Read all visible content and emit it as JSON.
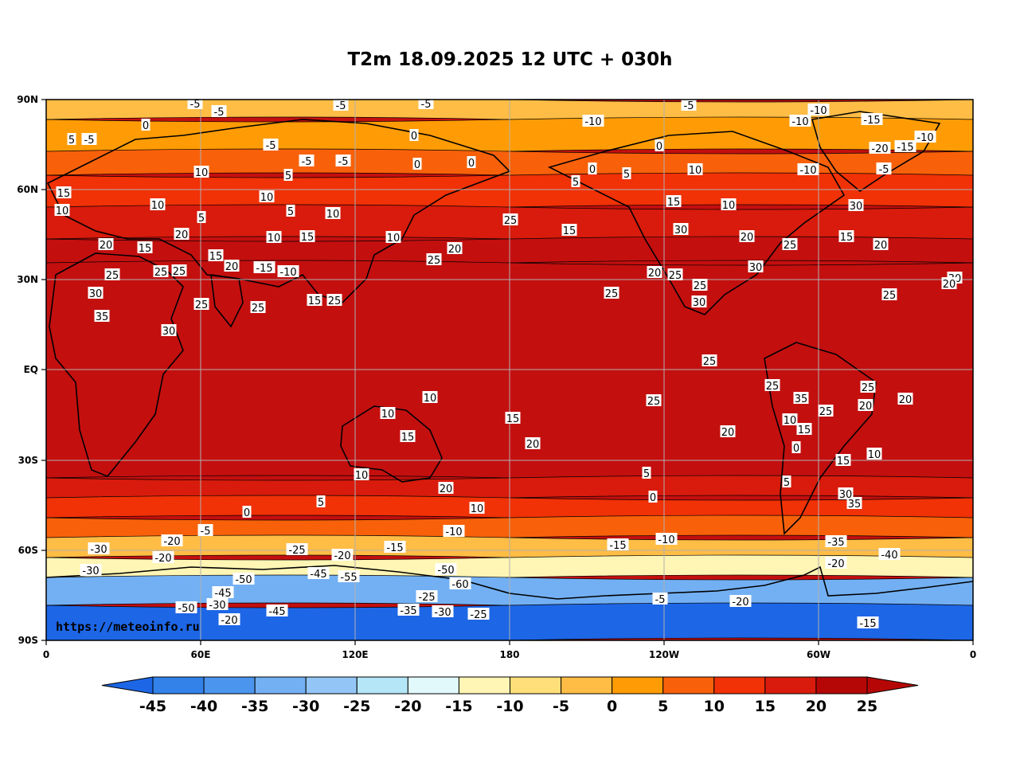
{
  "title": "T2m 18.09.2025 12 UTC + 030h",
  "watermark": "https://meteoinfo.ru",
  "lat_ticks": [
    "90N",
    "60N",
    "30N",
    "EQ",
    "30S",
    "60S",
    "90S"
  ],
  "lon_ticks": [
    "0",
    "60E",
    "120E",
    "180",
    "120W",
    "60W",
    "0"
  ],
  "colorbar": {
    "ticks": [
      "-45",
      "-40",
      "-35",
      "-30",
      "-25",
      "-20",
      "-15",
      "-10",
      "-5",
      "0",
      "5",
      "10",
      "15",
      "20",
      "25"
    ],
    "colors": [
      "#1d66e6",
      "#3282ea",
      "#4b95ee",
      "#73b0f3",
      "#93c6f6",
      "#b4e6f8",
      "#e1f9fb",
      "#fff5b4",
      "#ffdf7a",
      "#ffbd45",
      "#ff9c05",
      "#f8610a",
      "#f13106",
      "#d81b0c",
      "#b60707"
    ],
    "low_color": "#1d66e6",
    "high_color": "#b60707"
  },
  "bands": [
    {
      "value": -45,
      "color": "#1d66e6"
    },
    {
      "value": -30,
      "color": "#73b0f3"
    },
    {
      "value": -20,
      "color": "#b4e6f8"
    },
    {
      "value": -10,
      "color": "#fff5b4"
    },
    {
      "value": -5,
      "color": "#ffdf7a"
    },
    {
      "value": 0,
      "color": "#ffbd45"
    },
    {
      "value": 5,
      "color": "#ff9c05"
    },
    {
      "value": 10,
      "color": "#f8610a"
    },
    {
      "value": 15,
      "color": "#f13106"
    },
    {
      "value": 20,
      "color": "#d81b0c"
    },
    {
      "value": 25,
      "color": "#c40f0f"
    }
  ],
  "contour_labels": [
    "-5",
    "-5",
    "-5",
    "-5",
    "-5",
    "-10",
    "-10",
    "-10",
    "-15",
    "0",
    "5",
    "-5",
    "-5",
    "-5",
    "-20",
    "-15",
    "-10",
    "10",
    "-5",
    "-10",
    "-5",
    "0",
    "0",
    "0",
    "0",
    "0",
    "5",
    "5",
    "5",
    "10",
    "15",
    "10",
    "10",
    "5",
    "5",
    "10",
    "20",
    "20",
    "15",
    "15",
    "20",
    "10",
    "15",
    "10",
    "-15",
    "25",
    "-10",
    "25",
    "15",
    "20",
    "25",
    "25",
    "30",
    "35",
    "30",
    "25",
    "25",
    "25",
    "15",
    "25",
    "10",
    "15",
    "10",
    "30",
    "30",
    "25",
    "25",
    "25",
    "20",
    "30",
    "20",
    "25",
    "25",
    "30",
    "20",
    "20",
    "15",
    "25",
    "25",
    "20",
    "20",
    "15",
    "10",
    "15",
    "10",
    "10",
    "20",
    "10",
    "30",
    "35",
    "30",
    "35",
    "25",
    "25",
    "20",
    "25",
    "20",
    "15",
    "10",
    "15",
    "10",
    "5",
    "0",
    "5",
    "0",
    "5",
    "0",
    "-5",
    "-10",
    "-10",
    "-15",
    "-15",
    "-20",
    "-30",
    "-25",
    "-20",
    "-20",
    "-35",
    "-40",
    "-20",
    "-30",
    "-50",
    "-45",
    "-55",
    "-50",
    "-60",
    "-45",
    "-25",
    "-30",
    "-50",
    "-20",
    "-45",
    "-35",
    "-30",
    "-25",
    "-20",
    "-5",
    "-15"
  ]
}
